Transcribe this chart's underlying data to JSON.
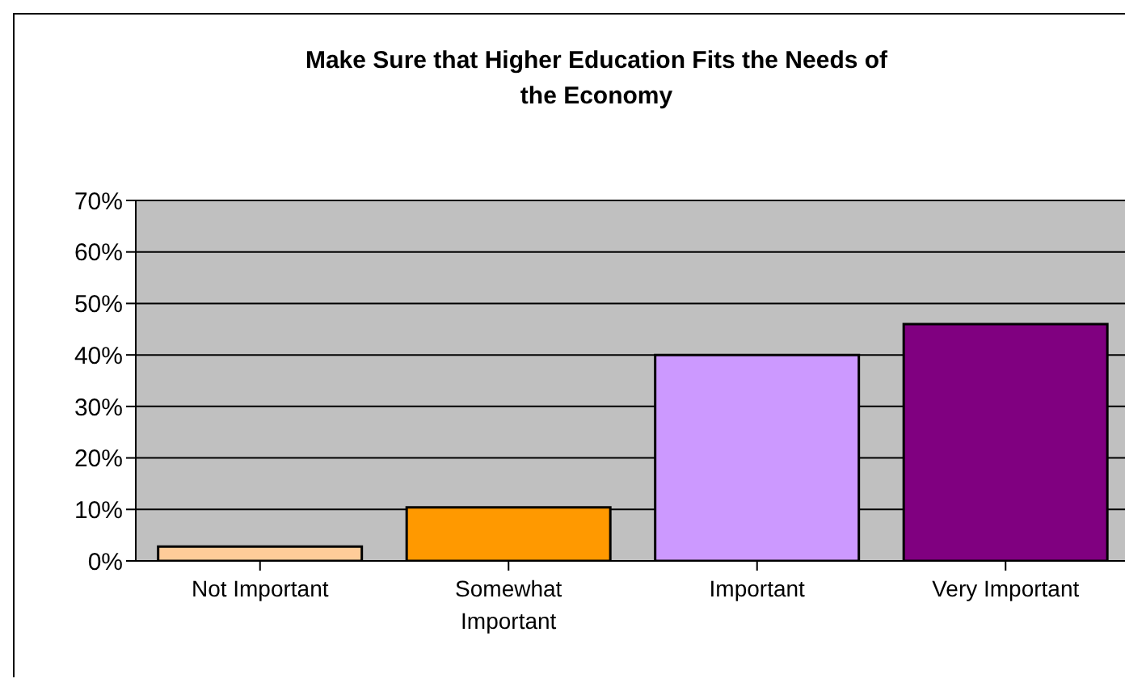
{
  "chart_data": {
    "type": "bar",
    "title": "Make Sure that Higher Education Fits the Needs of the Economy",
    "categories": [
      "Not Important",
      "Somewhat Important",
      "Important",
      "Very Important"
    ],
    "values": [
      2.8,
      10.4,
      40,
      46
    ],
    "colors": [
      "#ffcc99",
      "#ff9900",
      "#cc99ff",
      "#800080"
    ],
    "ylim": [
      0,
      70
    ],
    "yticks": [
      {
        "value": 0,
        "label": "0%"
      },
      {
        "value": 10,
        "label": "10%"
      },
      {
        "value": 20,
        "label": "20%"
      },
      {
        "value": 30,
        "label": "30%"
      },
      {
        "value": 40,
        "label": "40%"
      },
      {
        "value": 50,
        "label": "50%"
      },
      {
        "value": 60,
        "label": "60%"
      },
      {
        "value": 70,
        "label": "70%"
      }
    ],
    "grid": "y"
  }
}
